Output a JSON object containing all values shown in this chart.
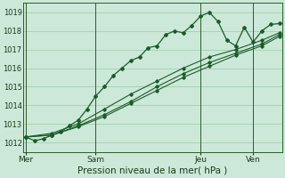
{
  "bg_color": "#cce8d8",
  "grid_color": "#99ccaa",
  "line_color": "#1a5c2a",
  "xlabel": "Pression niveau de la mer( hPa )",
  "xlabel_fontsize": 7.5,
  "ylim": [
    1011.5,
    1019.5
  ],
  "yticks": [
    1012,
    1013,
    1014,
    1015,
    1016,
    1017,
    1018,
    1019
  ],
  "day_labels": [
    "Mer",
    "Sam",
    "Jeu",
    "Ven"
  ],
  "day_positions": [
    0,
    8,
    20,
    26
  ],
  "total_points": 30,
  "series1_x": [
    0,
    1,
    2,
    3,
    4,
    5,
    6,
    7,
    8,
    9,
    10,
    11,
    12,
    13,
    14,
    15,
    16,
    17,
    18,
    19,
    20,
    21,
    22,
    23,
    24,
    25,
    26,
    27,
    28,
    29
  ],
  "series1_y": [
    1012.3,
    1012.1,
    1012.2,
    1012.4,
    1012.6,
    1012.9,
    1013.2,
    1013.8,
    1014.5,
    1015.0,
    1015.6,
    1016.0,
    1016.4,
    1016.6,
    1017.1,
    1017.2,
    1017.8,
    1018.0,
    1017.9,
    1018.3,
    1018.8,
    1019.0,
    1018.5,
    1017.5,
    1017.2,
    1018.2,
    1017.4,
    1018.0,
    1018.35,
    1018.4
  ],
  "series2_x": [
    0,
    3,
    6,
    9,
    12,
    15,
    18,
    21,
    24,
    27,
    29
  ],
  "series2_y": [
    1012.3,
    1012.5,
    1013.0,
    1013.8,
    1014.6,
    1015.3,
    1016.0,
    1016.6,
    1017.0,
    1017.5,
    1017.9
  ],
  "series3_x": [
    0,
    3,
    6,
    9,
    12,
    15,
    18,
    21,
    24,
    27,
    29
  ],
  "series3_y": [
    1012.3,
    1012.4,
    1012.9,
    1013.5,
    1014.2,
    1015.0,
    1015.7,
    1016.3,
    1016.8,
    1017.3,
    1017.8
  ],
  "series4_x": [
    0,
    3,
    6,
    9,
    12,
    15,
    18,
    21,
    24,
    27,
    29
  ],
  "series4_y": [
    1012.3,
    1012.4,
    1012.85,
    1013.4,
    1014.1,
    1014.8,
    1015.5,
    1016.1,
    1016.7,
    1017.2,
    1017.7
  ]
}
